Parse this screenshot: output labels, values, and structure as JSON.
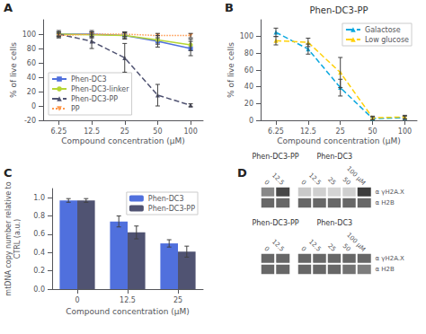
{
  "chart_data": [
    {
      "type": "line",
      "panel_label": "A",
      "xlabel": "Compound concentration (μM)",
      "ylabel": "% of live cells",
      "log": "x",
      "grid": false,
      "legend": "lower left",
      "xlim": [
        4.5,
        130
      ],
      "xticks": [
        6.25,
        12.5,
        25,
        50,
        100
      ],
      "ylim": [
        -20,
        120
      ],
      "yticks": [
        -20,
        0,
        20,
        40,
        60,
        80,
        100
      ],
      "x": [
        6.25,
        12.5,
        25,
        50,
        100
      ],
      "series": [
        {
          "name": "Phen-DC3",
          "values": [
            100,
            100,
            98,
            90,
            80
          ],
          "yerr": [
            3,
            5,
            5,
            8,
            10
          ],
          "marker": "square",
          "line_style": "solid"
        },
        {
          "name": "Phen-DC3-linker",
          "values": [
            100,
            99,
            98,
            92,
            85
          ],
          "yerr": [
            3,
            4,
            4,
            6,
            8
          ],
          "marker": "circle",
          "line_style": "solid"
        },
        {
          "name": "Phen-DC3-PP",
          "values": [
            100,
            90,
            67,
            15,
            1
          ],
          "yerr": [
            5,
            10,
            20,
            15,
            2
          ],
          "marker": "triangle",
          "line_style": "dashed"
        },
        {
          "name": "PP",
          "values": [
            98,
            100,
            100,
            98,
            98
          ],
          "yerr": [
            3,
            3,
            3,
            3,
            3
          ],
          "marker": "triangle_down",
          "line_style": "dotted"
        }
      ]
    },
    {
      "type": "line",
      "panel_label": "B",
      "title": "Phen-DC3-PP",
      "xlabel": "Compound concentration (μM)",
      "ylabel": "% of live cells",
      "log": "x",
      "grid": false,
      "legend": "upper right",
      "xlim": [
        4.5,
        130
      ],
      "xticks": [
        6.25,
        12.5,
        25,
        50,
        100
      ],
      "ylim": [
        0,
        120
      ],
      "yticks": [
        0,
        20,
        40,
        60,
        80,
        100
      ],
      "x": [
        6.25,
        12.5,
        25,
        50,
        100
      ],
      "series": [
        {
          "name": "Galactose",
          "values": [
            105,
            85,
            39,
            2,
            3
          ],
          "yerr": [
            5,
            6,
            10,
            2,
            2
          ],
          "marker": "triangle",
          "line_style": "dashed"
        },
        {
          "name": "Low glucose",
          "values": [
            95,
            93,
            57,
            3,
            4
          ],
          "yerr": [
            5,
            5,
            18,
            2,
            2
          ],
          "marker": "triangle",
          "line_style": "dashed"
        }
      ]
    },
    {
      "type": "bar",
      "panel_label": "C",
      "xlabel": "Compound concentration (μM)",
      "ylabel": "mtDNA copy number relative to\nCTRL (a.u.)",
      "grid": false,
      "legend": "upper right",
      "categories": [
        "0",
        "12.5",
        "25"
      ],
      "ylim": [
        0,
        1.1
      ],
      "yticks": [
        {
          "value": 0,
          "label": "0.0"
        },
        0.2,
        0.4,
        0.6,
        0.8,
        {
          "value": 1,
          "label": "1.0"
        }
      ],
      "series": [
        {
          "name": "Phen-DC3",
          "values": [
            0.97,
            0.74,
            0.5
          ],
          "yerr": [
            0.02,
            0.06,
            0.04
          ]
        },
        {
          "name": "Phen-DC3-PP",
          "values": [
            0.97,
            0.62,
            0.41
          ],
          "yerr": [
            0.02,
            0.07,
            0.06
          ]
        }
      ]
    },
    {
      "type": "heatmap",
      "panel_label": "D",
      "zlim": [
        0,
        1
      ],
      "blots": [
        {
          "rows": [
            "α γH2A.X",
            "α H2B"
          ],
          "groups": [
            {
              "title": "Phen-DC3-PP",
              "lanes": [
                "0",
                "12.5"
              ],
              "cells": [
                [
                  0.55,
                  0.85
                ],
                [
                  0.7,
                  0.7
                ]
              ]
            },
            {
              "title": "Phen-DC3",
              "lanes": [
                "0",
                "12.5",
                "25",
                "50",
                "100 μM"
              ],
              "cells": [
                [
                  0.25,
                  0.22,
                  0.2,
                  0.22,
                  0.9
                ],
                [
                  0.7,
                  0.7,
                  0.7,
                  0.7,
                  0.7
                ]
              ]
            }
          ]
        },
        {
          "rows": [
            "α γH2A.X",
            "α H2B"
          ],
          "groups": [
            {
              "title": "Phen-DC3-PP",
              "lanes": [
                "0",
                "12.5"
              ],
              "cells": [
                [
                  0.7,
                  0.7
                ],
                [
                  0.7,
                  0.7
                ]
              ]
            },
            {
              "title": "Phen-DC3",
              "lanes": [
                "0",
                "12.5",
                "25",
                "50",
                "100 μM"
              ],
              "cells": [
                [
                  0.7,
                  0.7,
                  0.7,
                  0.7,
                  0.7
                ],
                [
                  0.7,
                  0.7,
                  0.7,
                  0.65,
                  0.6
                ]
              ]
            }
          ]
        }
      ]
    }
  ]
}
